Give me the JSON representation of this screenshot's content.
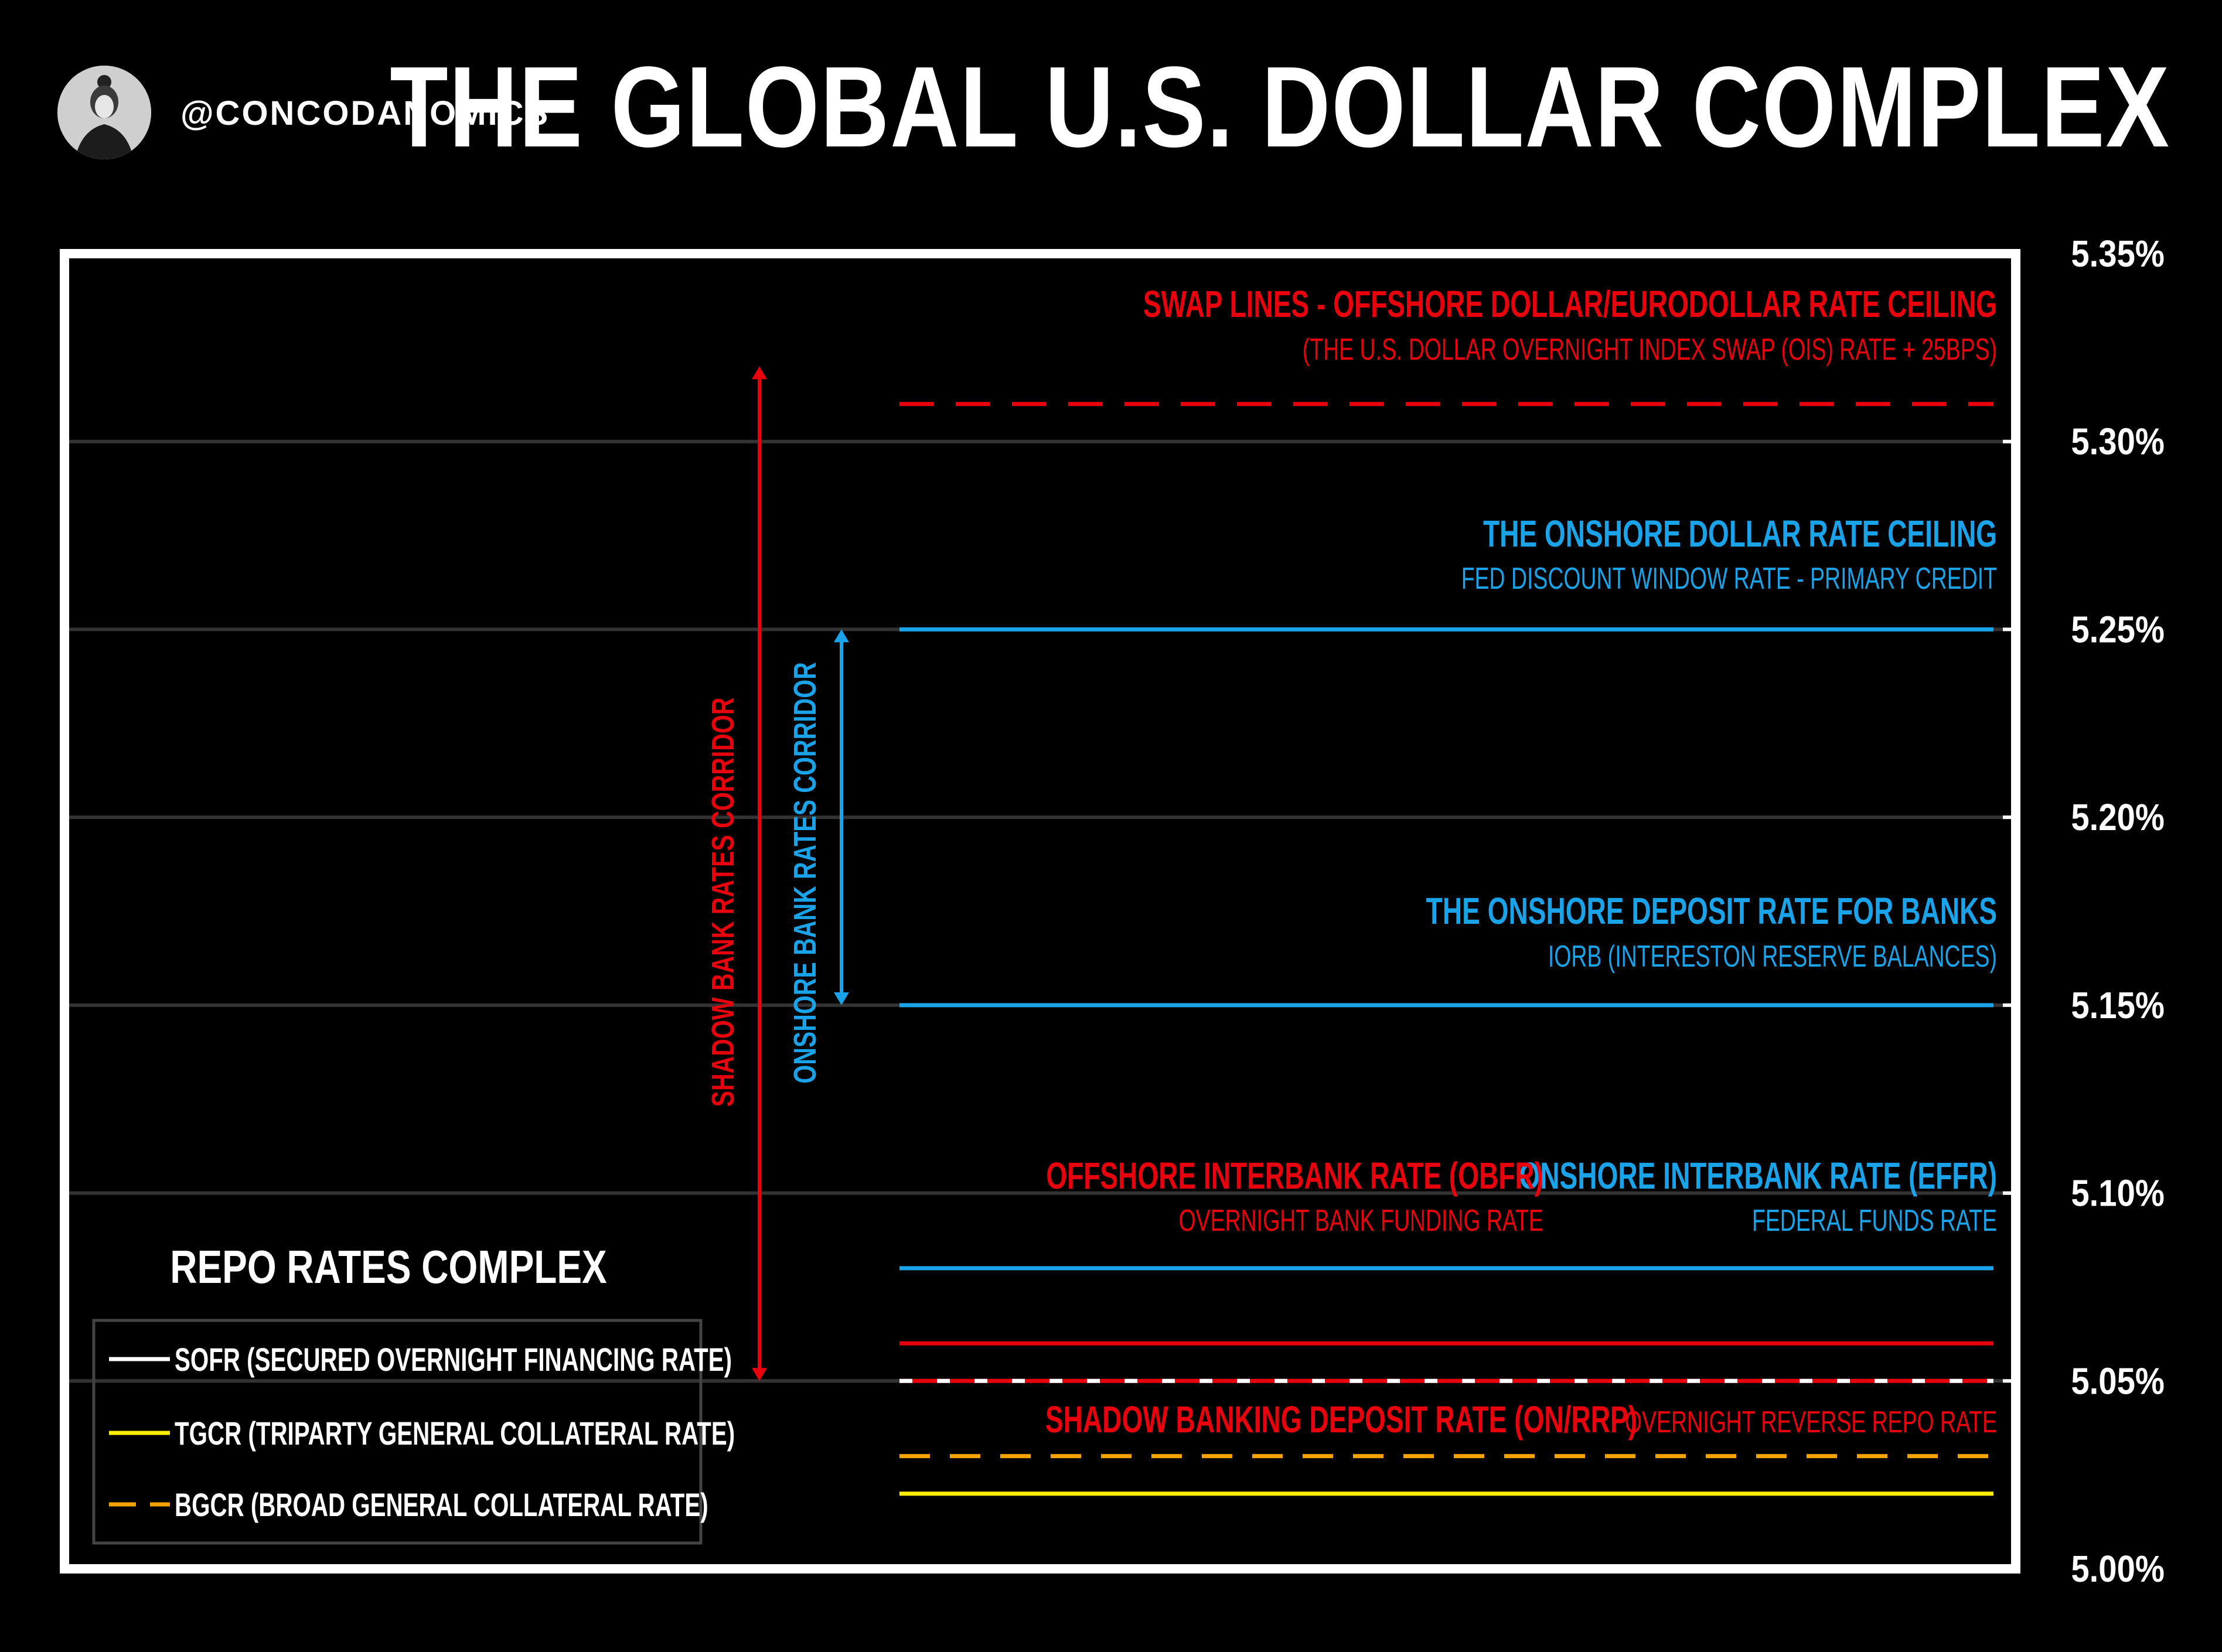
{
  "header": {
    "handle": "@CONCODANOMICS",
    "title": "THE GLOBAL U.S. DOLLAR COMPLEX"
  },
  "chart_data": {
    "type": "line",
    "title": "THE GLOBAL U.S. DOLLAR COMPLEX",
    "ylim": [
      5.0,
      5.35
    ],
    "y_ticks": [
      "5.35%",
      "5.30%",
      "5.25%",
      "5.20%",
      "5.15%",
      "5.10%",
      "5.05%",
      "5.00%"
    ],
    "grid": true,
    "series": [
      {
        "name": "SWAP LINES - OFFSHORE DOLLAR/EURODOLLAR RATE CEILING",
        "value": 5.31,
        "color": "#e8000d",
        "style": "dashed"
      },
      {
        "name": "THE ONSHORE DOLLAR RATE CEILING",
        "value": 5.25,
        "color": "#1aa3e8",
        "style": "solid"
      },
      {
        "name": "THE ONSHORE DEPOSIT RATE FOR BANKS",
        "value": 5.15,
        "color": "#1aa3e8",
        "style": "solid"
      },
      {
        "name": "ONSHORE INTERBANK RATE (EFFR)",
        "value": 5.08,
        "color": "#1aa3e8",
        "style": "solid"
      },
      {
        "name": "OFFSHORE INTERBANK RATE (OBFR)",
        "value": 5.06,
        "color": "#e8000d",
        "style": "solid"
      },
      {
        "name": "SHADOW BANKING DEPOSIT RATE (ON/RRP)",
        "value": 5.05,
        "color": "#e8000d",
        "style": "solid"
      },
      {
        "name": "SOFR (SECURED OVERNIGHT FINANCING RATE)",
        "value": 5.05,
        "color": "#ffffff",
        "style": "dashed"
      },
      {
        "name": "BGCR (BROAD GENERAL COLLATERAL RATE)",
        "value": 5.03,
        "color": "#f5a300",
        "style": "dashed"
      },
      {
        "name": "TGCR (TRIPARTY GENERAL COLLATERAL RATE)",
        "value": 5.02,
        "color": "#ffee00",
        "style": "solid"
      }
    ],
    "annotations": [
      {
        "id": "swap_title",
        "text": "SWAP LINES - OFFSHORE DOLLAR/EURODOLLAR RATE CEILING",
        "color": "#e8000d"
      },
      {
        "id": "swap_sub",
        "text": "(THE U.S. DOLLAR OVERNIGHT INDEX SWAP (OIS) RATE + 25BPS)",
        "color": "#e8000d"
      },
      {
        "id": "ceil_title",
        "text": "THE ONSHORE DOLLAR RATE CEILING",
        "color": "#1aa3e8"
      },
      {
        "id": "ceil_sub",
        "text": "FED DISCOUNT WINDOW RATE - PRIMARY CREDIT",
        "color": "#1aa3e8"
      },
      {
        "id": "dep_title",
        "text": "THE ONSHORE DEPOSIT RATE FOR BANKS",
        "color": "#1aa3e8"
      },
      {
        "id": "dep_sub",
        "text": "IORB (INTERESTON RESERVE BALANCES)",
        "color": "#1aa3e8"
      },
      {
        "id": "obfr_title",
        "text": "OFFSHORE INTERBANK RATE (OBFR)",
        "color": "#e8000d"
      },
      {
        "id": "obfr_sub",
        "text": "OVERNIGHT BANK FUNDING RATE",
        "color": "#e8000d"
      },
      {
        "id": "effr_title",
        "text": "ONSHORE INTERBANK RATE (EFFR)",
        "color": "#1aa3e8"
      },
      {
        "id": "effr_sub",
        "text": "FEDERAL FUNDS RATE",
        "color": "#1aa3e8"
      },
      {
        "id": "rrp_title",
        "text": "SHADOW BANKING DEPOSIT RATE (ON/RRP)",
        "color": "#e8000d"
      },
      {
        "id": "rrp_sub",
        "text": "OVERNIGHT REVERSE REPO RATE",
        "color": "#e8000d"
      },
      {
        "id": "shadow_corridor",
        "text": "SHADOW BANK RATES CORRIDOR",
        "color": "#e8000d",
        "from": 5.05,
        "to": 5.32
      },
      {
        "id": "onshore_corridor",
        "text": "ONSHORE BANK RATES CORRIDOR",
        "color": "#1aa3e8",
        "from": 5.15,
        "to": 5.25
      }
    ],
    "legend": {
      "title": "REPO RATES COMPLEX",
      "placement": "bottom-left",
      "items": [
        {
          "label": "SOFR (SECURED OVERNIGHT FINANCING RATE)",
          "color": "#ffffff",
          "style": "solid"
        },
        {
          "label": "TGCR (TRIPARTY GENERAL COLLATERAL RATE)",
          "color": "#ffee00",
          "style": "solid"
        },
        {
          "label": "BGCR (BROAD GENERAL COLLATERAL RATE)",
          "color": "#f5a300",
          "style": "dashed"
        }
      ]
    }
  }
}
